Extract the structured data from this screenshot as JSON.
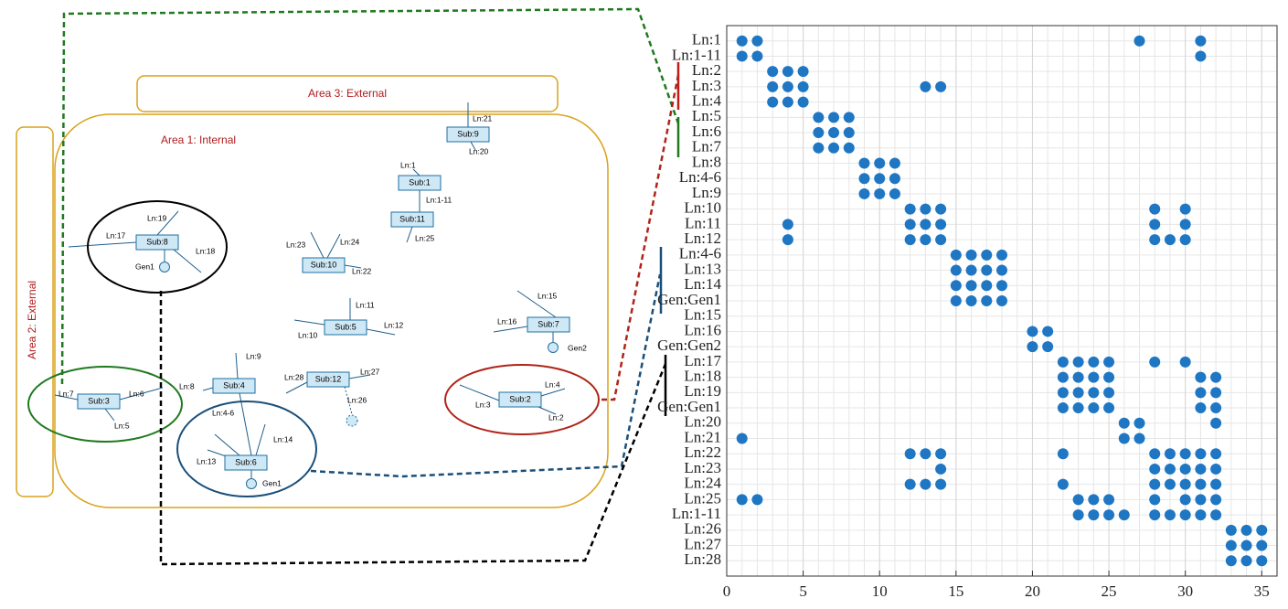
{
  "diagram": {
    "areas": [
      "Area 3: External",
      "Area 1: Internal",
      "Area 2: External"
    ],
    "substations": [
      "Sub:9",
      "Sub:1",
      "Sub:11",
      "Sub:8",
      "Sub:10",
      "Sub:5",
      "Sub:7",
      "Sub:4",
      "Sub:12",
      "Sub:3",
      "Sub:2",
      "Sub:6"
    ],
    "labels": [
      "Ln:21",
      "Ln:20",
      "Ln:1",
      "Ln:1-11",
      "Ln:25",
      "Ln:19",
      "Ln:17",
      "Ln:18",
      "Gen1",
      "Ln:23",
      "Ln:24",
      "Ln:22",
      "Ln:11",
      "Ln:12",
      "Ln:10",
      "Ln:15",
      "Ln:16",
      "Gen2",
      "Ln:9",
      "Ln:8",
      "Ln:28",
      "Ln:27",
      "Ln:26",
      "Ln:7",
      "Ln:6",
      "Ln:5",
      "Ln:3",
      "Ln:4",
      "Ln:2",
      "Ln:4-6",
      "Ln:14",
      "Ln:13",
      "Gen1"
    ]
  },
  "chart_data": {
    "type": "scatter",
    "color": "#1f77c4",
    "grid": true,
    "xlim": [
      0,
      36
    ],
    "xticks": [
      0,
      5,
      10,
      15,
      20,
      25,
      30,
      35
    ],
    "rows": [
      {
        "label": "Ln:1",
        "x": [
          1,
          2,
          27,
          31
        ]
      },
      {
        "label": "Ln:1-11",
        "x": [
          1,
          2,
          31
        ]
      },
      {
        "label": "Ln:2",
        "x": [
          3,
          4,
          5
        ]
      },
      {
        "label": "Ln:3",
        "x": [
          3,
          4,
          5,
          13,
          14
        ]
      },
      {
        "label": "Ln:4",
        "x": [
          3,
          4,
          5
        ]
      },
      {
        "label": "Ln:5",
        "x": [
          6,
          7,
          8
        ]
      },
      {
        "label": "Ln:6",
        "x": [
          6,
          7,
          8
        ]
      },
      {
        "label": "Ln:7",
        "x": [
          6,
          7,
          8
        ]
      },
      {
        "label": "Ln:8",
        "x": [
          9,
          10,
          11
        ]
      },
      {
        "label": "Ln:4-6",
        "x": [
          9,
          10,
          11
        ]
      },
      {
        "label": "Ln:9",
        "x": [
          9,
          10,
          11
        ]
      },
      {
        "label": "Ln:10",
        "x": [
          12,
          13,
          14,
          28,
          30
        ]
      },
      {
        "label": "Ln:11",
        "x": [
          4,
          12,
          13,
          14,
          28,
          30
        ]
      },
      {
        "label": "Ln:12",
        "x": [
          4,
          12,
          13,
          14,
          28,
          29,
          30
        ]
      },
      {
        "label": "Ln:4-6",
        "x": [
          15,
          16,
          17,
          18
        ]
      },
      {
        "label": "Ln:13",
        "x": [
          15,
          16,
          17,
          18
        ]
      },
      {
        "label": "Ln:14",
        "x": [
          15,
          16,
          17,
          18
        ]
      },
      {
        "label": "Gen:Gen1",
        "x": [
          15,
          16,
          17,
          18
        ]
      },
      {
        "label": "Ln:15",
        "x": []
      },
      {
        "label": "Ln:16",
        "x": [
          20,
          21
        ]
      },
      {
        "label": "Gen:Gen2",
        "x": [
          20,
          21
        ]
      },
      {
        "label": "Ln:17",
        "x": [
          22,
          23,
          24,
          25,
          28,
          30
        ]
      },
      {
        "label": "Ln:18",
        "x": [
          22,
          23,
          24,
          25,
          31,
          32
        ]
      },
      {
        "label": "Ln:19",
        "x": [
          22,
          23,
          24,
          25,
          31,
          32
        ]
      },
      {
        "label": "Gen:Gen1",
        "x": [
          22,
          23,
          24,
          25,
          31,
          32
        ]
      },
      {
        "label": "Ln:20",
        "x": [
          26,
          27,
          32
        ]
      },
      {
        "label": "Ln:21",
        "x": [
          1,
          26,
          27
        ]
      },
      {
        "label": "Ln:22",
        "x": [
          12,
          13,
          14,
          22,
          28,
          29,
          30,
          31,
          32
        ]
      },
      {
        "label": "Ln:23",
        "x": [
          14,
          28,
          29,
          30,
          31,
          32
        ]
      },
      {
        "label": "Ln:24",
        "x": [
          12,
          13,
          14,
          22,
          28,
          29,
          30,
          31,
          32
        ]
      },
      {
        "label": "Ln:25",
        "x": [
          1,
          2,
          23,
          24,
          25,
          28,
          30,
          31,
          32
        ]
      },
      {
        "label": "Ln:1-11",
        "x": [
          23,
          24,
          25,
          26,
          28,
          29,
          30,
          31,
          32
        ]
      },
      {
        "label": "Ln:26",
        "x": [
          33,
          34,
          35
        ]
      },
      {
        "label": "Ln:27",
        "x": [
          33,
          34,
          35
        ]
      },
      {
        "label": "Ln:28",
        "x": [
          33,
          34,
          35
        ]
      }
    ]
  }
}
